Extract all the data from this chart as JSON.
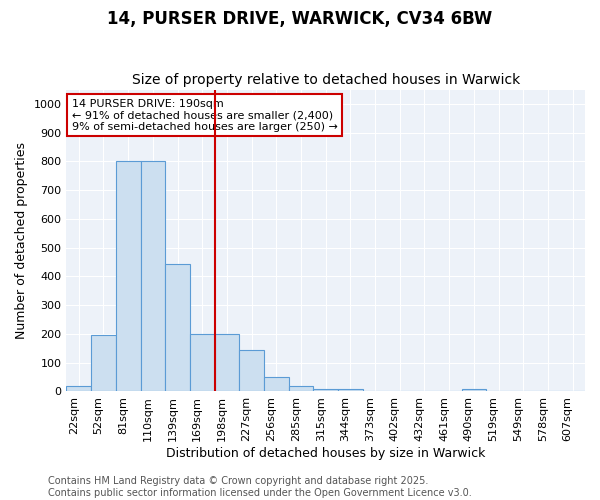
{
  "title": "14, PURSER DRIVE, WARWICK, CV34 6BW",
  "subtitle": "Size of property relative to detached houses in Warwick",
  "xlabel": "Distribution of detached houses by size in Warwick",
  "ylabel": "Number of detached properties",
  "categories": [
    "22sqm",
    "52sqm",
    "81sqm",
    "110sqm",
    "139sqm",
    "169sqm",
    "198sqm",
    "227sqm",
    "256sqm",
    "285sqm",
    "315sqm",
    "344sqm",
    "373sqm",
    "402sqm",
    "432sqm",
    "461sqm",
    "490sqm",
    "519sqm",
    "549sqm",
    "578sqm",
    "607sqm"
  ],
  "values": [
    20,
    197,
    800,
    800,
    445,
    200,
    200,
    143,
    50,
    20,
    10,
    10,
    0,
    0,
    0,
    0,
    8,
    0,
    0,
    0,
    0
  ],
  "bar_color": "#ccdff0",
  "bar_edge_color": "#5b9bd5",
  "vline_color": "#cc0000",
  "vline_x": 6,
  "annotation_text": "14 PURSER DRIVE: 190sqm\n← 91% of detached houses are smaller (2,400)\n9% of semi-detached houses are larger (250) →",
  "annotation_box_facecolor": "#ffffff",
  "annotation_box_edgecolor": "#cc0000",
  "ylim": [
    0,
    1050
  ],
  "yticks": [
    0,
    100,
    200,
    300,
    400,
    500,
    600,
    700,
    800,
    900,
    1000
  ],
  "bg_color": "#edf2f9",
  "fig_bg_color": "#ffffff",
  "footer_text": "Contains HM Land Registry data © Crown copyright and database right 2025.\nContains public sector information licensed under the Open Government Licence v3.0.",
  "title_fontsize": 12,
  "subtitle_fontsize": 10,
  "axis_label_fontsize": 9,
  "tick_fontsize": 8,
  "annotation_fontsize": 8,
  "footer_fontsize": 7
}
